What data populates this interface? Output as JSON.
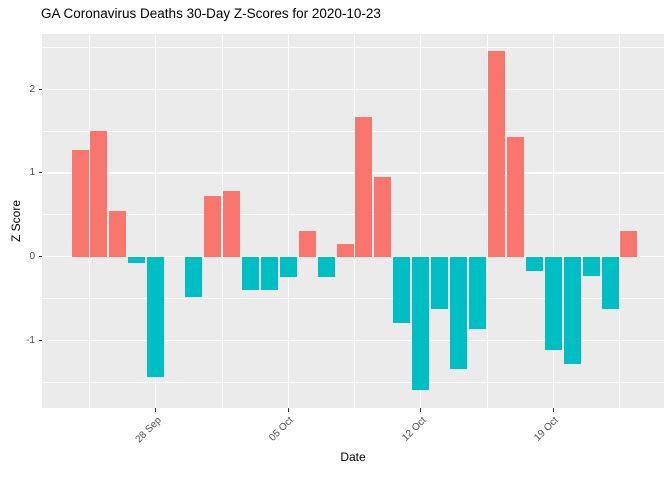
{
  "chart_data": {
    "type": "bar",
    "title": "GA Coronavirus Deaths 30-Day Z-Scores for 2020-10-23",
    "xlabel": "Date",
    "ylabel": "Z Score",
    "x": [
      "2020-09-24",
      "2020-09-25",
      "2020-09-26",
      "2020-09-27",
      "2020-09-28",
      "2020-09-29",
      "2020-09-30",
      "2020-10-01",
      "2020-10-02",
      "2020-10-03",
      "2020-10-04",
      "2020-10-05",
      "2020-10-06",
      "2020-10-07",
      "2020-10-08",
      "2020-10-09",
      "2020-10-10",
      "2020-10-11",
      "2020-10-12",
      "2020-10-13",
      "2020-10-14",
      "2020-10-15",
      "2020-10-16",
      "2020-10-17",
      "2020-10-18",
      "2020-10-19",
      "2020-10-20",
      "2020-10-21",
      "2020-10-22",
      "2020-10-23"
    ],
    "values": [
      1.27,
      1.5,
      0.55,
      -0.08,
      -1.44,
      0.0,
      -0.48,
      0.72,
      0.78,
      -0.4,
      -0.4,
      -0.24,
      0.31,
      -0.24,
      0.15,
      1.67,
      0.95,
      -0.79,
      -1.6,
      -0.63,
      -1.35,
      -0.87,
      2.46,
      1.43,
      -0.17,
      -1.12,
      -1.28,
      -0.23,
      -0.63,
      0.31
    ],
    "x_ticks": [
      {
        "index": 4,
        "label": "28 Sep"
      },
      {
        "index": 11,
        "label": "05 Oct"
      },
      {
        "index": 18,
        "label": "12 Oct"
      },
      {
        "index": 25,
        "label": "19 Oct"
      }
    ],
    "x_minor_indices": [
      0.5,
      7.5,
      14.5,
      21.5,
      28.5
    ],
    "y_ticks": [
      -1,
      0,
      1,
      2
    ],
    "y_minor": [
      -1.5,
      -0.5,
      0.5,
      1.5,
      2.5
    ],
    "ylim": [
      -1.81,
      2.66
    ],
    "grid": true,
    "legend_position": "none",
    "colors": {
      "positive_bar": "#F8766D",
      "negative_bar": "#00BFC4",
      "panel_background": "#EBEBEB",
      "gridline": "#FFFFFF",
      "tick_label": "#4D4D4D",
      "axis_title": "#000000",
      "tick_mark": "#333333"
    }
  }
}
